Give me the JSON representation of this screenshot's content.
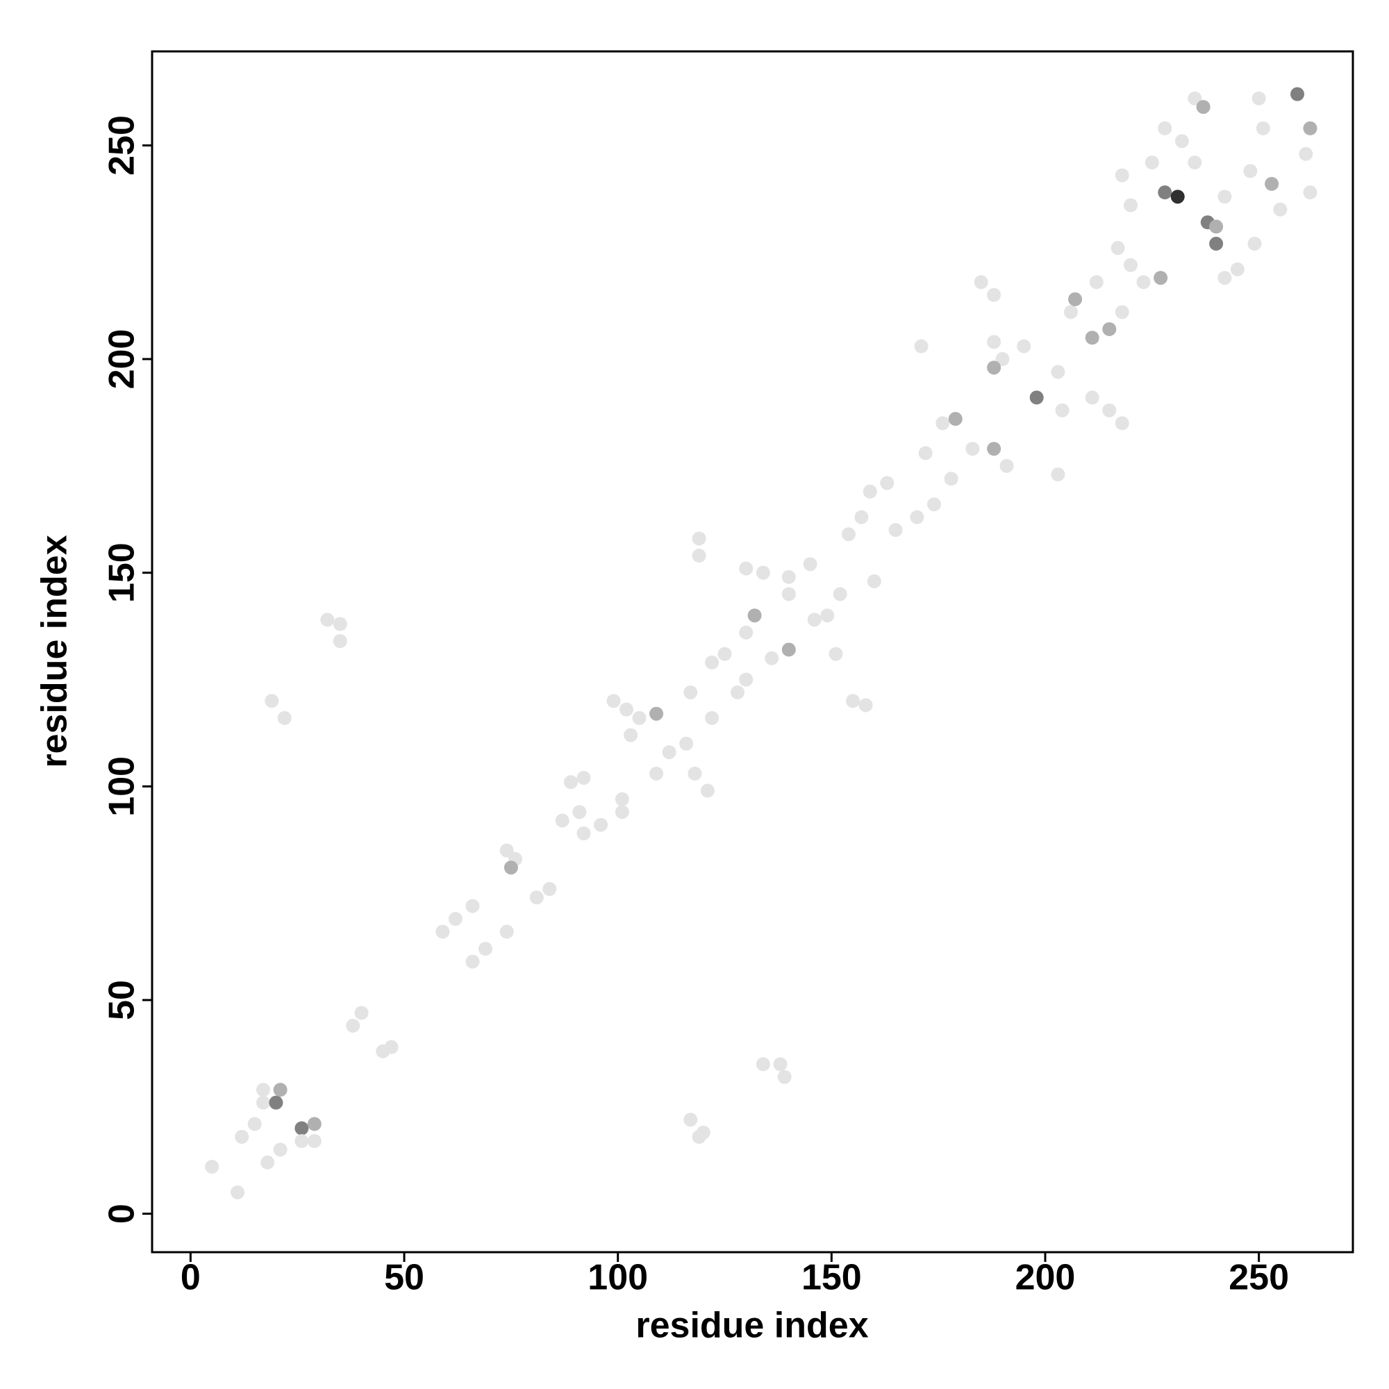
{
  "chart_data": {
    "type": "scatter",
    "x_label": "residue index",
    "y_label": "residue index",
    "xlim": [
      -9,
      272
    ],
    "ylim": [
      -9,
      272
    ],
    "xticks": [
      0,
      50,
      100,
      150,
      200,
      250
    ],
    "yticks": [
      0,
      50,
      100,
      150,
      200,
      250
    ],
    "x": [
      5,
      11,
      12,
      15,
      18,
      21,
      17,
      17,
      20,
      21,
      26,
      29,
      26,
      29,
      32,
      35,
      35,
      19,
      22,
      38,
      40,
      45,
      47,
      59,
      62,
      66,
      66,
      69,
      74,
      74,
      76,
      75,
      81,
      84,
      89,
      92,
      87,
      91,
      92,
      96,
      101,
      101,
      99,
      102,
      105,
      109,
      103,
      109,
      112,
      116,
      118,
      121,
      117,
      119,
      119,
      122,
      125,
      122,
      128,
      130,
      130,
      132,
      130,
      134,
      140,
      140,
      140,
      136,
      145,
      146,
      149,
      151,
      152,
      155,
      158,
      154,
      157,
      159,
      163,
      160,
      165,
      170,
      174,
      171,
      172,
      176,
      179,
      178,
      183,
      188,
      185,
      188,
      188,
      190,
      188,
      191,
      195,
      198,
      203,
      203,
      204,
      206,
      207,
      211,
      211,
      215,
      212,
      215,
      217,
      218,
      218,
      223,
      227,
      228,
      231,
      225,
      228,
      232,
      235,
      237,
      238,
      240,
      240,
      242,
      242,
      245,
      248,
      250,
      253,
      255,
      259,
      262,
      262,
      261,
      249,
      218,
      220,
      235,
      251,
      220,
      134,
      138,
      139,
      117,
      119,
      120
    ],
    "values": [
      11,
      5,
      18,
      21,
      12,
      15,
      29,
      26,
      26,
      29,
      20,
      21,
      17,
      17,
      139,
      138,
      134,
      120,
      116,
      44,
      47,
      38,
      39,
      66,
      69,
      72,
      59,
      62,
      66,
      85,
      83,
      81,
      74,
      76,
      101,
      102,
      92,
      94,
      89,
      91,
      97,
      94,
      120,
      118,
      116,
      117,
      112,
      103,
      108,
      110,
      103,
      99,
      122,
      158,
      154,
      129,
      131,
      116,
      122,
      125,
      136,
      140,
      151,
      150,
      145,
      149,
      132,
      130,
      152,
      139,
      140,
      131,
      145,
      120,
      119,
      159,
      163,
      169,
      171,
      148,
      160,
      163,
      166,
      203,
      178,
      185,
      186,
      172,
      179,
      179,
      218,
      215,
      204,
      200,
      198,
      175,
      203,
      191,
      197,
      173,
      188,
      211,
      214,
      205,
      191,
      188,
      218,
      207,
      226,
      185,
      211,
      218,
      219,
      239,
      238,
      246,
      254,
      251,
      261,
      259,
      232,
      231,
      227,
      238,
      219,
      221,
      244,
      261,
      241,
      235,
      262,
      254,
      239,
      248,
      227,
      243,
      236,
      246,
      254,
      222,
      35,
      35,
      32,
      22,
      18,
      19
    ],
    "colors": [
      "#e3e3e3",
      "#e3e3e3",
      "#e3e3e3",
      "#e3e3e3",
      "#e3e3e3",
      "#e3e3e3",
      "#e3e3e3",
      "#e3e3e3",
      "#808080",
      "#b0b0b0",
      "#808080",
      "#b0b0b0",
      "#e3e3e3",
      "#e3e3e3",
      "#e3e3e3",
      "#e3e3e3",
      "#e3e3e3",
      "#e3e3e3",
      "#e3e3e3",
      "#e3e3e3",
      "#e3e3e3",
      "#e3e3e3",
      "#e3e3e3",
      "#e3e3e3",
      "#e3e3e3",
      "#e3e3e3",
      "#e3e3e3",
      "#e3e3e3",
      "#e3e3e3",
      "#e3e3e3",
      "#e3e3e3",
      "#b0b0b0",
      "#e3e3e3",
      "#e3e3e3",
      "#e3e3e3",
      "#e3e3e3",
      "#e3e3e3",
      "#e3e3e3",
      "#e3e3e3",
      "#e3e3e3",
      "#e3e3e3",
      "#e3e3e3",
      "#e3e3e3",
      "#e3e3e3",
      "#e3e3e3",
      "#b0b0b0",
      "#e3e3e3",
      "#e3e3e3",
      "#e3e3e3",
      "#e3e3e3",
      "#e3e3e3",
      "#e3e3e3",
      "#e3e3e3",
      "#e3e3e3",
      "#e3e3e3",
      "#e3e3e3",
      "#e3e3e3",
      "#e3e3e3",
      "#e3e3e3",
      "#e3e3e3",
      "#e3e3e3",
      "#b0b0b0",
      "#e3e3e3",
      "#e3e3e3",
      "#e3e3e3",
      "#e3e3e3",
      "#b0b0b0",
      "#e3e3e3",
      "#e3e3e3",
      "#e3e3e3",
      "#e3e3e3",
      "#e3e3e3",
      "#e3e3e3",
      "#e3e3e3",
      "#e3e3e3",
      "#e3e3e3",
      "#e3e3e3",
      "#e3e3e3",
      "#e3e3e3",
      "#e3e3e3",
      "#e3e3e3",
      "#e3e3e3",
      "#e3e3e3",
      "#e3e3e3",
      "#e3e3e3",
      "#e3e3e3",
      "#b0b0b0",
      "#e3e3e3",
      "#e3e3e3",
      "#b0b0b0",
      "#e3e3e3",
      "#e3e3e3",
      "#e3e3e3",
      "#e3e3e3",
      "#b0b0b0",
      "#e3e3e3",
      "#e3e3e3",
      "#808080",
      "#e3e3e3",
      "#e3e3e3",
      "#e3e3e3",
      "#e3e3e3",
      "#b0b0b0",
      "#b0b0b0",
      "#e3e3e3",
      "#e3e3e3",
      "#e3e3e3",
      "#b0b0b0",
      "#e3e3e3",
      "#e3e3e3",
      "#e3e3e3",
      "#e3e3e3",
      "#b0b0b0",
      "#808080",
      "#303030",
      "#e3e3e3",
      "#e3e3e3",
      "#e3e3e3",
      "#e3e3e3",
      "#b0b0b0",
      "#808080",
      "#b0b0b0",
      "#808080",
      "#e3e3e3",
      "#e3e3e3",
      "#e3e3e3",
      "#e3e3e3",
      "#e3e3e3",
      "#b0b0b0",
      "#e3e3e3",
      "#808080",
      "#b0b0b0",
      "#e3e3e3",
      "#e3e3e3",
      "#e3e3e3",
      "#e3e3e3",
      "#e3e3e3",
      "#e3e3e3",
      "#e3e3e3",
      "#e3e3e3",
      "#e3e3e3",
      "#e3e3e3",
      "#e3e3e3",
      "#e3e3e3",
      "#e3e3e3",
      "#e3e3e3"
    ]
  }
}
